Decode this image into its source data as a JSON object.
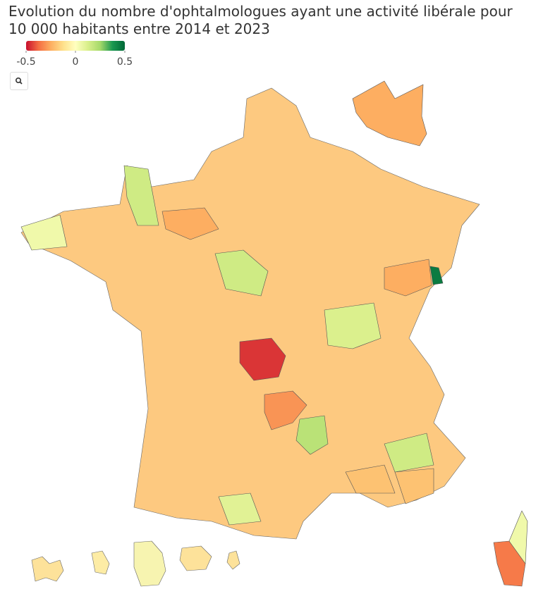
{
  "chart_data": {
    "type": "choropleth",
    "title": "Evolution du nombre d'ophtalmologues ayant une activité libérale pour 10 000 habitants entre 2014 et 2023",
    "colorscale": [
      "#c8102e",
      "#f46d43",
      "#fdae61",
      "#fee08b",
      "#ffffbf",
      "#d9ef8b",
      "#a6d96a",
      "#1a9850",
      "#006837"
    ],
    "clim": [
      -0.5,
      0.5
    ],
    "cticks": [
      -0.5,
      0,
      0.5
    ],
    "values": [
      -0.45,
      -0.3,
      0.2,
      0.45,
      -0.25,
      -0.25,
      0.15,
      -0.35,
      0.05,
      0.15,
      0.12,
      0.15,
      0.1,
      -0.25,
      -0.2,
      -0.2,
      0.05
    ]
  }
}
